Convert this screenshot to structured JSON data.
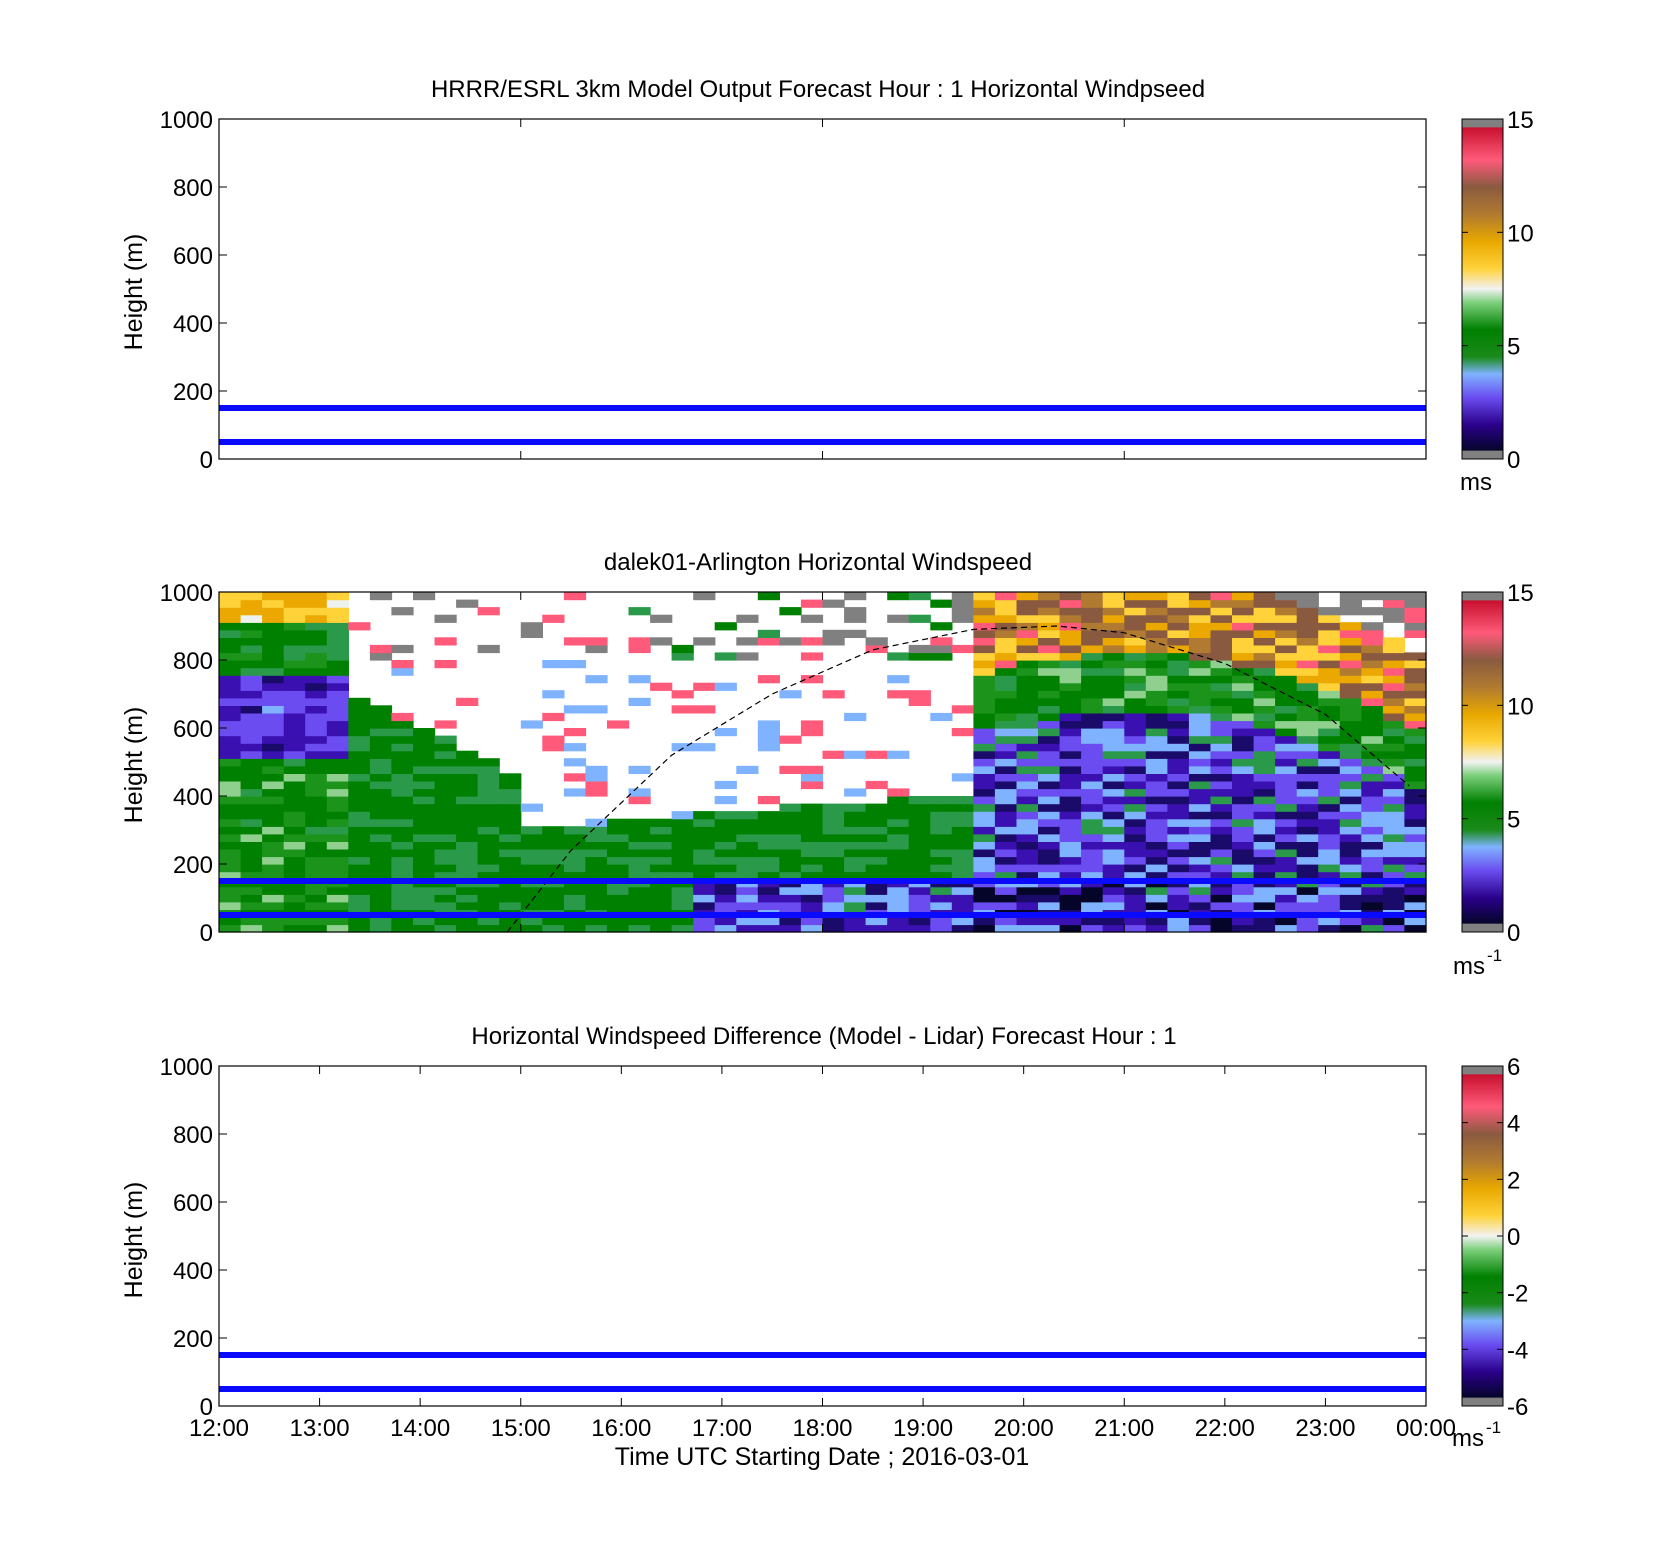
{
  "colors": {
    "reference_line": "#0a0aff",
    "axis": "#000000",
    "out_of_range": "#808080"
  },
  "chart_data": [
    {
      "type": "heatmap",
      "title": "HRRR/ESRL 3km Model Output   Forecast Hour : 1 Horizontal Windpseed",
      "ylabel": "Height (m)",
      "ylim": [
        0,
        1000
      ],
      "yticks": [
        "0",
        "200",
        "400",
        "600",
        "800",
        "1000"
      ],
      "x_range": [
        "12:00",
        "00:00"
      ],
      "x_tick_labels_shown": false,
      "grid": false,
      "reference_lines_m": [
        50,
        150
      ],
      "field": "empty",
      "colorbar": {
        "range": [
          0,
          15
        ],
        "ticks": [
          "0",
          "5",
          "10",
          "15"
        ],
        "unit": "ms"
      }
    },
    {
      "type": "heatmap",
      "title": "dalek01-Arlington  Horizontal Windspeed",
      "ylabel": "Height (m)",
      "ylim": [
        0,
        1000
      ],
      "yticks": [
        "0",
        "200",
        "400",
        "600",
        "800",
        "1000"
      ],
      "x_range": [
        "12:00",
        "00:00"
      ],
      "x_tick_labels_shown": false,
      "grid": false,
      "reference_lines_m": [
        50,
        150
      ],
      "field": "lidar horizontal windspeed, about 12 time columns per hour, 0-15 m/s",
      "boundary_layer_curve": {
        "style": "dashed",
        "points": [
          [
            "14:52",
            0
          ],
          [
            "15:30",
            240
          ],
          [
            "16:30",
            520
          ],
          [
            "17:30",
            700
          ],
          [
            "18:30",
            830
          ],
          [
            "19:30",
            890
          ],
          [
            "20:20",
            900
          ],
          [
            "21:00",
            880
          ],
          [
            "22:00",
            790
          ],
          [
            "23:00",
            640
          ],
          [
            "23:50",
            430
          ]
        ]
      },
      "colorbar": {
        "range": [
          0,
          15
        ],
        "ticks": [
          "0",
          "5",
          "10",
          "15"
        ],
        "unit": "ms",
        "unit_superscript": "-1"
      }
    },
    {
      "type": "heatmap",
      "title": "Horizontal Windspeed Difference (Model - Lidar) Forecast Hour : 1",
      "ylabel": "Height (m)",
      "xlabel": "Time UTC  Starting Date ; 2016-03-01",
      "ylim": [
        0,
        1000
      ],
      "yticks": [
        "0",
        "200",
        "400",
        "600",
        "800",
        "1000"
      ],
      "xticks": [
        "12:00",
        "13:00",
        "14:00",
        "15:00",
        "16:00",
        "17:00",
        "18:00",
        "19:00",
        "20:00",
        "21:00",
        "22:00",
        "23:00",
        "00:00"
      ],
      "grid": false,
      "reference_lines_m": [
        50,
        150
      ],
      "field": "empty",
      "colorbar": {
        "range": [
          -6,
          6
        ],
        "ticks": [
          "-6",
          "-4",
          "-2",
          "0",
          "2",
          "4",
          "6"
        ],
        "unit": "ms",
        "unit_superscript": "-1"
      }
    }
  ]
}
